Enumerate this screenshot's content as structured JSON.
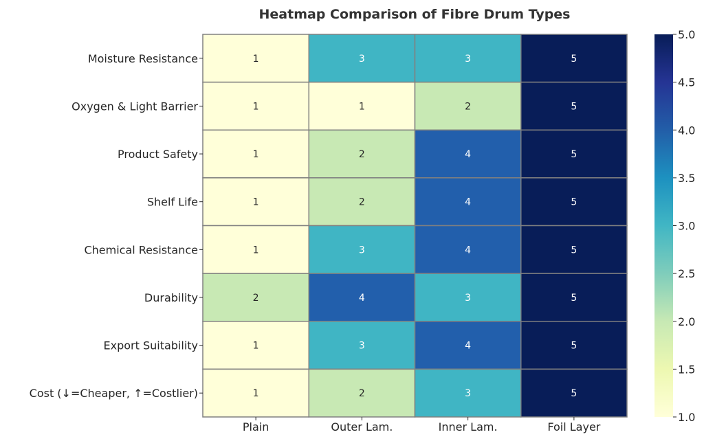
{
  "chart_data": {
    "type": "heatmap",
    "title": "Heatmap Comparison of Fibre Drum Types",
    "xlabel": "",
    "ylabel": "",
    "columns": [
      "Plain",
      "Outer Lam.",
      "Inner Lam.",
      "Foil Layer"
    ],
    "rows": [
      "Moisture Resistance",
      "Oxygen & Light Barrier",
      "Product Safety",
      "Shelf Life",
      "Chemical Resistance",
      "Durability",
      "Export Suitability",
      "Cost (↓=Cheaper, ↑=Costlier)"
    ],
    "values": [
      [
        1,
        3,
        3,
        5
      ],
      [
        1,
        1,
        2,
        5
      ],
      [
        1,
        2,
        4,
        5
      ],
      [
        1,
        2,
        4,
        5
      ],
      [
        1,
        3,
        4,
        5
      ],
      [
        2,
        4,
        3,
        5
      ],
      [
        1,
        3,
        4,
        5
      ],
      [
        1,
        2,
        3,
        5
      ]
    ],
    "colorscale": "YlGnBu",
    "colors": {
      "1": "#ffffd9",
      "2": "#c8e9b4",
      "3": "#40b5c4",
      "4": "#225fac",
      "5": "#081d58"
    },
    "colorbar": {
      "min": 1.0,
      "max": 5.0,
      "ticks": [
        "1.0",
        "1.5",
        "2.0",
        "2.5",
        "3.0",
        "3.5",
        "4.0",
        "4.5",
        "5.0"
      ]
    },
    "annotate": true,
    "grid_line_color": "#808080"
  }
}
